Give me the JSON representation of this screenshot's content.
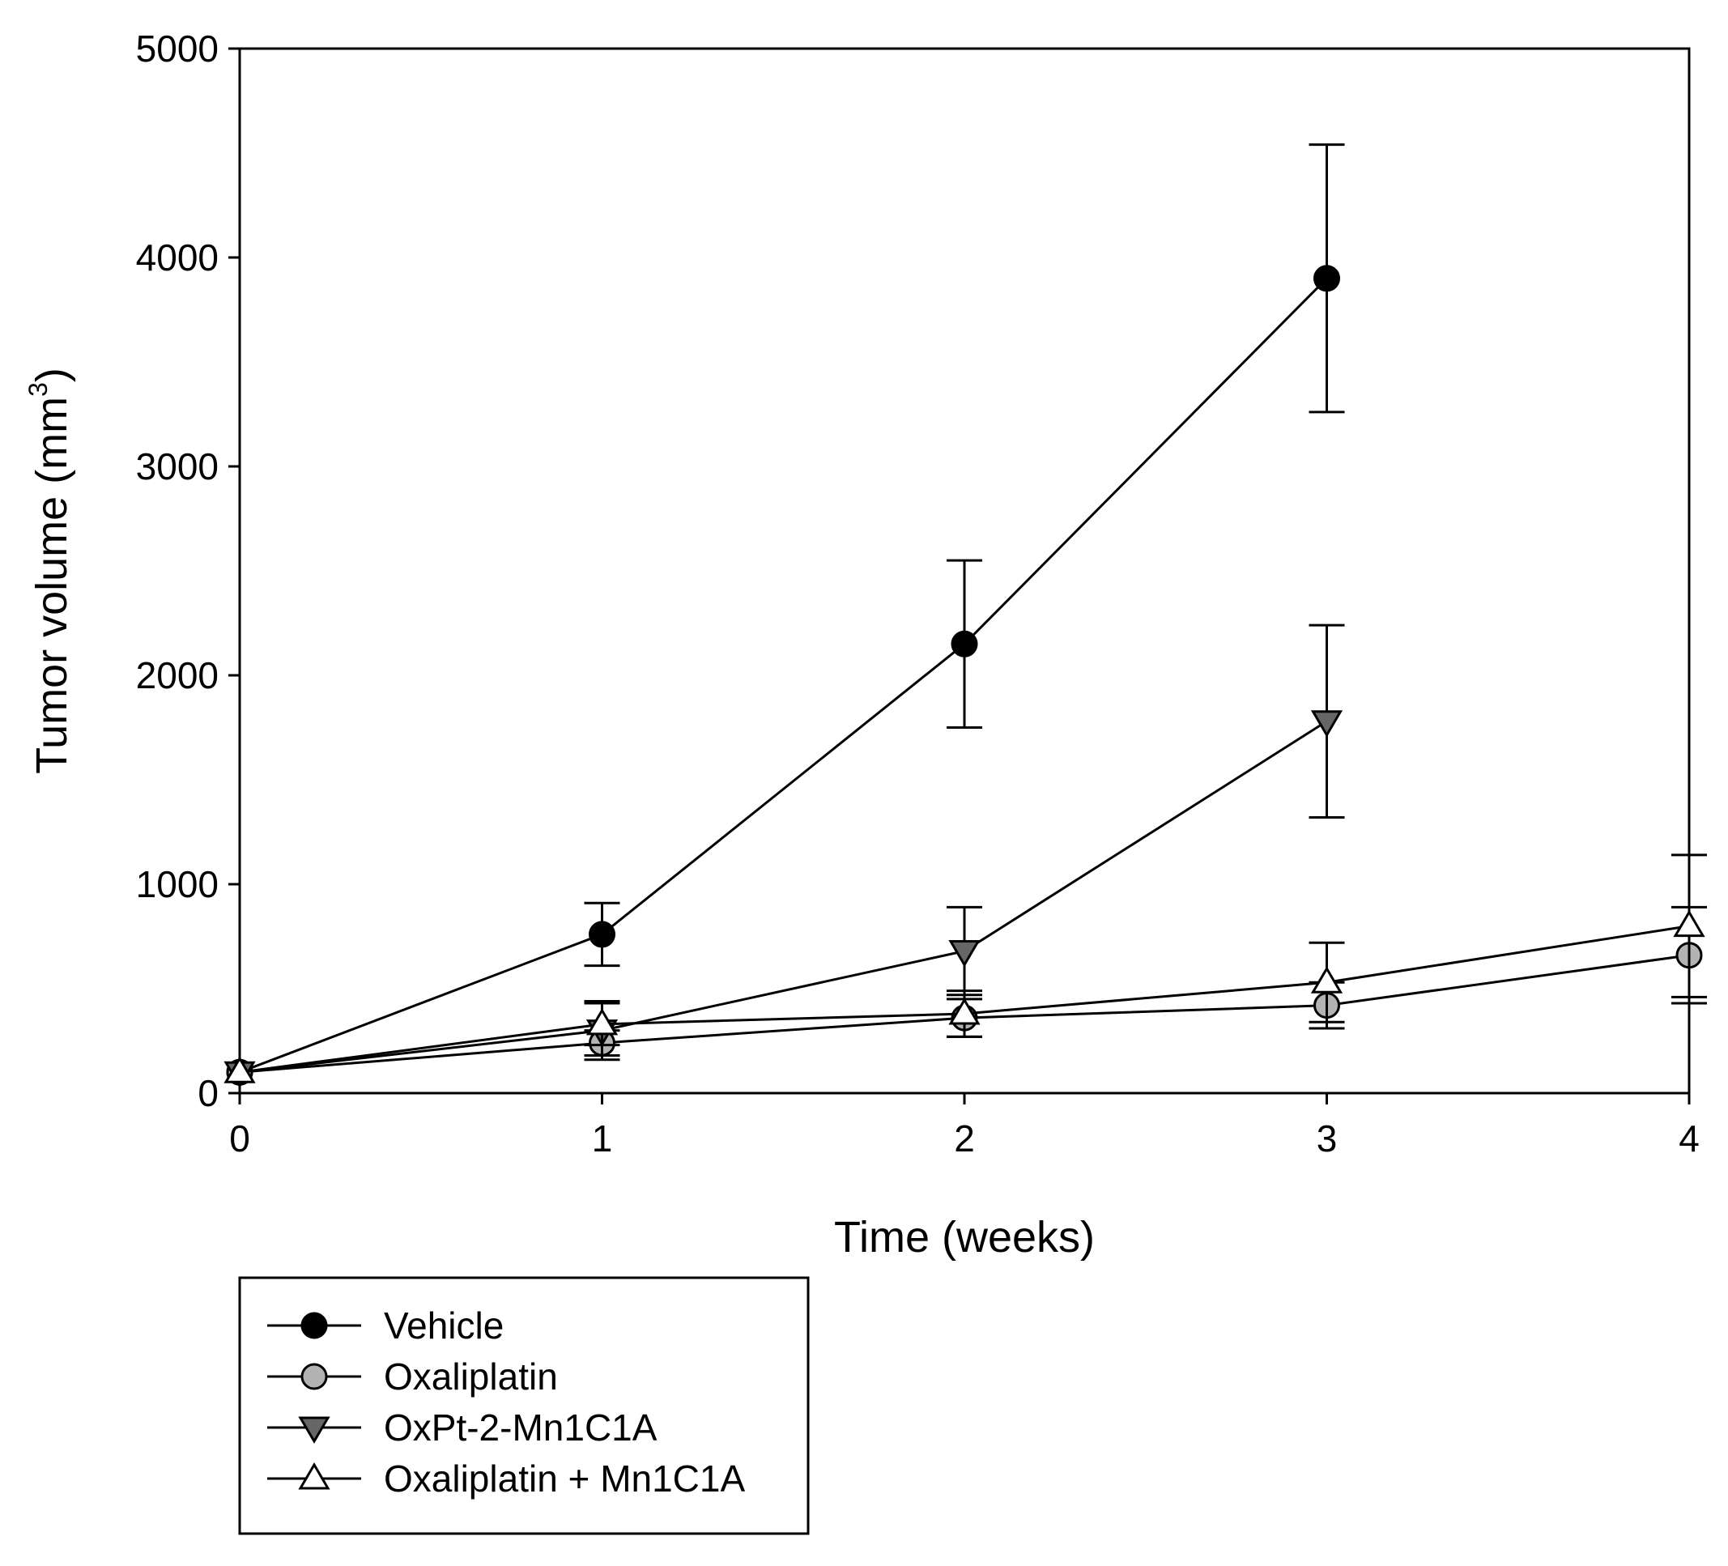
{
  "chart_data": {
    "type": "line",
    "title": "",
    "xlabel": "Time (weeks)",
    "ylabel": "Tumor volume (mm",
    "ylabel_superscript": "3",
    "ylabel_suffix": ")",
    "xlim": [
      0,
      4
    ],
    "ylim": [
      0,
      5000
    ],
    "x_ticks": [
      0,
      1,
      2,
      3,
      4
    ],
    "y_ticks": [
      0,
      1000,
      2000,
      3000,
      4000,
      5000
    ],
    "x_tick_labels": [
      "0",
      "1",
      "2",
      "3",
      "4"
    ],
    "y_tick_labels": [
      "0",
      "1000",
      "2000",
      "3000",
      "4000",
      "5000"
    ],
    "grid": false,
    "legend_position": "bottom-left (below plot)",
    "series": [
      {
        "name": "Vehicle",
        "marker": "circle",
        "fill": "#000000",
        "x": [
          0,
          1,
          2,
          3
        ],
        "y": [
          100,
          760,
          2150,
          3900
        ],
        "err": [
          0,
          150,
          400,
          640
        ]
      },
      {
        "name": "Oxaliplatin",
        "marker": "circle",
        "fill": "#b3b3b3",
        "x": [
          0,
          1,
          2,
          3,
          4
        ],
        "y": [
          100,
          240,
          360,
          420,
          660
        ],
        "err": [
          0,
          60,
          90,
          110,
          230
        ]
      },
      {
        "name": "OxPt-2-Mn1C1A",
        "marker": "triangle-down",
        "fill": "#666666",
        "x": [
          0,
          1,
          2,
          3
        ],
        "y": [
          100,
          300,
          680,
          1780
        ],
        "err": [
          0,
          140,
          210,
          460
        ]
      },
      {
        "name": "Oxaliplatin + Mn1C1A",
        "marker": "triangle-up",
        "fill": "#ffffff",
        "x": [
          0,
          1,
          2,
          3,
          4
        ],
        "y": [
          100,
          330,
          380,
          530,
          800
        ],
        "err": [
          0,
          100,
          110,
          190,
          340
        ]
      }
    ]
  }
}
